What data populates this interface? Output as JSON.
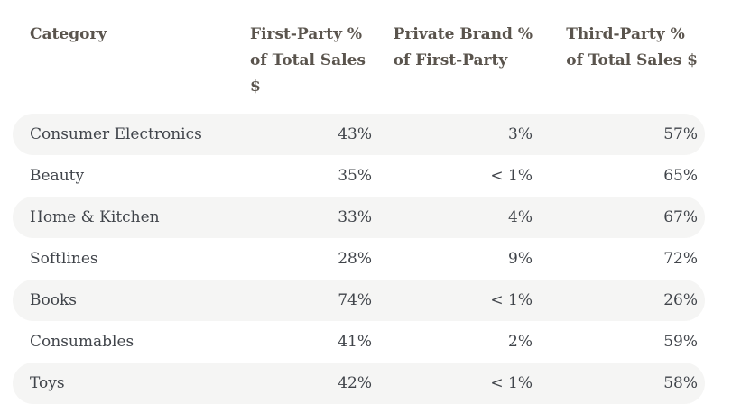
{
  "chart_data": {
    "type": "table",
    "title": "",
    "columns": [
      "Category",
      "First-Party % of Total Sales $",
      "Private Brand % of First-Party",
      "Third-Party % of Total Sales $"
    ],
    "rows": [
      [
        "Consumer Electronics",
        "43%",
        "3%",
        "57%"
      ],
      [
        "Beauty",
        "35%",
        "< 1%",
        "65%"
      ],
      [
        "Home & Kitchen",
        "33%",
        "4%",
        "67%"
      ],
      [
        "Softlines",
        "28%",
        "9%",
        "72%"
      ],
      [
        "Books",
        "74%",
        "< 1%",
        "26%"
      ],
      [
        "Consumables",
        "41%",
        "2%",
        "59%"
      ],
      [
        "Toys",
        "42%",
        "< 1%",
        "58%"
      ]
    ]
  },
  "table": {
    "header": {
      "category": "Category",
      "col2_line1": "First-Party %",
      "col2_line2": "of Total Sales $",
      "col3_line1": "Private Brand %",
      "col3_line2": "of First-Party",
      "col4_line1": "Third-Party %",
      "col4_line2": "of Total Sales $"
    },
    "rows": [
      {
        "category": "Consumer Electronics",
        "first_party": "43%",
        "private_brand": "3%",
        "third_party": "57%"
      },
      {
        "category": "Beauty",
        "first_party": "35%",
        "private_brand": "< 1%",
        "third_party": "65%"
      },
      {
        "category": "Home & Kitchen",
        "first_party": "33%",
        "private_brand": "4%",
        "third_party": "67%"
      },
      {
        "category": "Softlines",
        "first_party": "28%",
        "private_brand": "9%",
        "third_party": "72%"
      },
      {
        "category": "Books",
        "first_party": "74%",
        "private_brand": "< 1%",
        "third_party": "26%"
      },
      {
        "category": "Consumables",
        "first_party": "41%",
        "private_brand": "2%",
        "third_party": "59%"
      },
      {
        "category": "Toys",
        "first_party": "42%",
        "private_brand": "< 1%",
        "third_party": "58%"
      }
    ]
  },
  "colors": {
    "background": "#ffffff",
    "row_shade": "#f5f5f4",
    "header_text": "#5a544d",
    "body_text": "#40444a"
  }
}
